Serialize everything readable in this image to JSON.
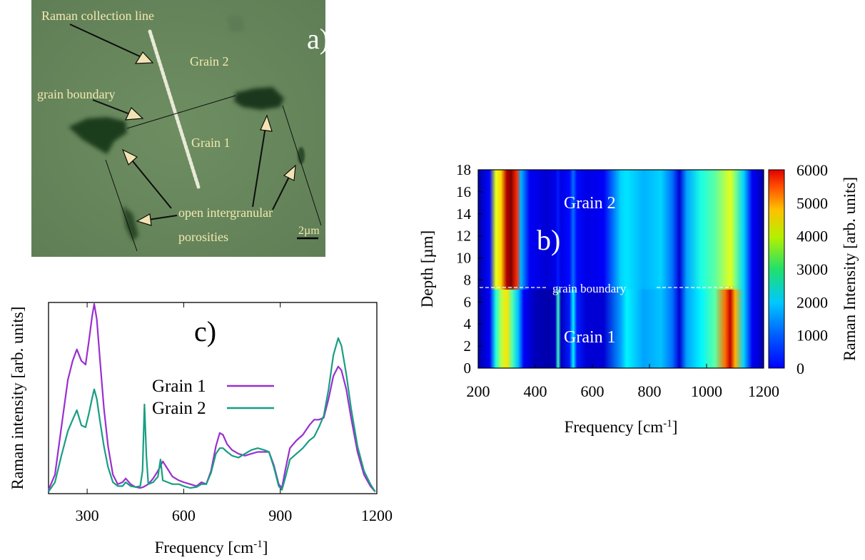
{
  "panel_a": {
    "panel_label": "a)",
    "annotations": {
      "collection_line": "Raman collection line",
      "grain_2": "Grain 2",
      "grain_boundary": "grain boundary",
      "grain_1": "Grain 1",
      "porosities_line1": "open intergranular",
      "porosities_line2": "porosities",
      "scale_bar": "2µm"
    },
    "colors": {
      "background": "#6b8a5f",
      "label_text": "#f3e9b0",
      "arrow_fill": "#f3e3b3",
      "pore": "#1e3a1c"
    }
  },
  "chart_data": [
    {
      "type": "heatmap",
      "panel_label": "b)",
      "xlabel": "Frequency [cm",
      "xlabel_sup": "-1",
      "xlabel_end": "]",
      "ylabel": "Depth [µm]",
      "colorbar_label": "Raman Intensity [arb. units]",
      "xlim": [
        200,
        1200
      ],
      "ylim": [
        0,
        18
      ],
      "xticks": [
        "200",
        "400",
        "600",
        "800",
        "1000",
        "1200"
      ],
      "yticks": [
        "0",
        "2",
        "4",
        "6",
        "8",
        "10",
        "12",
        "14",
        "16",
        "18"
      ],
      "colorbar_range": [
        0,
        6000
      ],
      "colorbar_ticks": [
        "0",
        "1000",
        "2000",
        "3000",
        "4000",
        "5000",
        "6000"
      ],
      "grain_boundary_depth": 7.3,
      "annotations": {
        "grain_2": "Grain 2",
        "grain_1": "Grain 1",
        "boundary": "grain boundary"
      },
      "colormap": "jet",
      "bands_grain1": [
        {
          "f": 205,
          "v": 300
        },
        {
          "f": 240,
          "v": 700
        },
        {
          "f": 262,
          "v": 2400
        },
        {
          "f": 280,
          "v": 3300
        },
        {
          "f": 300,
          "v": 3900
        },
        {
          "f": 320,
          "v": 2700
        },
        {
          "f": 340,
          "v": 1900
        },
        {
          "f": 360,
          "v": 700
        },
        {
          "f": 400,
          "v": 350
        },
        {
          "f": 440,
          "v": 250
        },
        {
          "f": 470,
          "v": 350
        },
        {
          "f": 480,
          "v": 2600
        },
        {
          "f": 490,
          "v": 350
        },
        {
          "f": 520,
          "v": 900
        },
        {
          "f": 533,
          "v": 2200
        },
        {
          "f": 546,
          "v": 900
        },
        {
          "f": 580,
          "v": 500
        },
        {
          "f": 640,
          "v": 500
        },
        {
          "f": 700,
          "v": 1700
        },
        {
          "f": 720,
          "v": 2200
        },
        {
          "f": 780,
          "v": 1700
        },
        {
          "f": 840,
          "v": 1900
        },
        {
          "f": 880,
          "v": 1400
        },
        {
          "f": 905,
          "v": 500
        },
        {
          "f": 930,
          "v": 1700
        },
        {
          "f": 980,
          "v": 2200
        },
        {
          "f": 1030,
          "v": 2800
        },
        {
          "f": 1065,
          "v": 4600
        },
        {
          "f": 1083,
          "v": 5600
        },
        {
          "f": 1100,
          "v": 4200
        },
        {
          "f": 1130,
          "v": 2000
        },
        {
          "f": 1160,
          "v": 700
        },
        {
          "f": 1200,
          "v": 300
        }
      ],
      "bands_grain2": [
        {
          "f": 205,
          "v": 300
        },
        {
          "f": 240,
          "v": 800
        },
        {
          "f": 262,
          "v": 3600
        },
        {
          "f": 280,
          "v": 4000
        },
        {
          "f": 300,
          "v": 5700
        },
        {
          "f": 315,
          "v": 6000
        },
        {
          "f": 335,
          "v": 5000
        },
        {
          "f": 350,
          "v": 1800
        },
        {
          "f": 380,
          "v": 700
        },
        {
          "f": 440,
          "v": 500
        },
        {
          "f": 470,
          "v": 600
        },
        {
          "f": 480,
          "v": 900
        },
        {
          "f": 490,
          "v": 600
        },
        {
          "f": 520,
          "v": 800
        },
        {
          "f": 533,
          "v": 1400
        },
        {
          "f": 546,
          "v": 800
        },
        {
          "f": 580,
          "v": 600
        },
        {
          "f": 640,
          "v": 700
        },
        {
          "f": 700,
          "v": 2000
        },
        {
          "f": 720,
          "v": 2100
        },
        {
          "f": 780,
          "v": 1800
        },
        {
          "f": 840,
          "v": 2000
        },
        {
          "f": 880,
          "v": 1400
        },
        {
          "f": 905,
          "v": 500
        },
        {
          "f": 930,
          "v": 1700
        },
        {
          "f": 980,
          "v": 2400
        },
        {
          "f": 1030,
          "v": 2800
        },
        {
          "f": 1065,
          "v": 3300
        },
        {
          "f": 1083,
          "v": 3600
        },
        {
          "f": 1100,
          "v": 3000
        },
        {
          "f": 1130,
          "v": 2000
        },
        {
          "f": 1160,
          "v": 700
        },
        {
          "f": 1200,
          "v": 300
        }
      ]
    },
    {
      "type": "line",
      "panel_label": "c)",
      "xlabel": "Frequency [cm",
      "xlabel_sup": "-1",
      "xlabel_end": "]",
      "ylabel": "Raman intensity [arb. units]",
      "xlim": [
        180,
        1200
      ],
      "ylim": [
        0,
        1
      ],
      "xticks": [
        "300",
        "600",
        "900",
        "1200"
      ],
      "series": [
        {
          "name": "Grain 1",
          "color": "#9a2fd0",
          "points": [
            [
              180,
              0.02
            ],
            [
              200,
              0.1
            ],
            [
              220,
              0.35
            ],
            [
              240,
              0.6
            ],
            [
              255,
              0.7
            ],
            [
              268,
              0.76
            ],
            [
              282,
              0.7
            ],
            [
              295,
              0.68
            ],
            [
              305,
              0.8
            ],
            [
              315,
              0.93
            ],
            [
              322,
              1.0
            ],
            [
              330,
              0.92
            ],
            [
              340,
              0.7
            ],
            [
              352,
              0.45
            ],
            [
              365,
              0.25
            ],
            [
              380,
              0.1
            ],
            [
              395,
              0.05
            ],
            [
              410,
              0.06
            ],
            [
              420,
              0.08
            ],
            [
              435,
              0.05
            ],
            [
              450,
              0.035
            ],
            [
              465,
              0.03
            ],
            [
              475,
              0.035
            ],
            [
              490,
              0.05
            ],
            [
              505,
              0.08
            ],
            [
              520,
              0.12
            ],
            [
              535,
              0.17
            ],
            [
              550,
              0.13
            ],
            [
              565,
              0.09
            ],
            [
              585,
              0.07
            ],
            [
              600,
              0.06
            ],
            [
              620,
              0.05
            ],
            [
              640,
              0.04
            ],
            [
              655,
              0.06
            ],
            [
              670,
              0.05
            ],
            [
              685,
              0.12
            ],
            [
              700,
              0.25
            ],
            [
              712,
              0.32
            ],
            [
              722,
              0.31
            ],
            [
              735,
              0.26
            ],
            [
              750,
              0.23
            ],
            [
              770,
              0.21
            ],
            [
              790,
              0.2
            ],
            [
              810,
              0.21
            ],
            [
              830,
              0.22
            ],
            [
              850,
              0.22
            ],
            [
              865,
              0.22
            ],
            [
              880,
              0.15
            ],
            [
              895,
              0.05
            ],
            [
              905,
              0.03
            ],
            [
              915,
              0.12
            ],
            [
              930,
              0.24
            ],
            [
              950,
              0.28
            ],
            [
              970,
              0.31
            ],
            [
              990,
              0.36
            ],
            [
              1005,
              0.39
            ],
            [
              1020,
              0.39
            ],
            [
              1035,
              0.4
            ],
            [
              1050,
              0.5
            ],
            [
              1065,
              0.62
            ],
            [
              1080,
              0.67
            ],
            [
              1090,
              0.65
            ],
            [
              1105,
              0.55
            ],
            [
              1120,
              0.4
            ],
            [
              1140,
              0.22
            ],
            [
              1160,
              0.1
            ],
            [
              1180,
              0.04
            ],
            [
              1195,
              0.01
            ]
          ]
        },
        {
          "name": "Grain 2",
          "color": "#189e82",
          "points": [
            [
              180,
              0.01
            ],
            [
              200,
              0.06
            ],
            [
              220,
              0.2
            ],
            [
              240,
              0.33
            ],
            [
              255,
              0.39
            ],
            [
              268,
              0.44
            ],
            [
              282,
              0.36
            ],
            [
              295,
              0.35
            ],
            [
              305,
              0.42
            ],
            [
              315,
              0.5
            ],
            [
              322,
              0.55
            ],
            [
              330,
              0.5
            ],
            [
              340,
              0.38
            ],
            [
              352,
              0.25
            ],
            [
              365,
              0.14
            ],
            [
              380,
              0.06
            ],
            [
              395,
              0.04
            ],
            [
              410,
              0.04
            ],
            [
              420,
              0.06
            ],
            [
              435,
              0.04
            ],
            [
              450,
              0.035
            ],
            [
              465,
              0.04
            ],
            [
              472,
              0.12
            ],
            [
              478,
              0.47
            ],
            [
              484,
              0.2
            ],
            [
              490,
              0.05
            ],
            [
              505,
              0.06
            ],
            [
              520,
              0.09
            ],
            [
              528,
              0.18
            ],
            [
              535,
              0.07
            ],
            [
              550,
              0.06
            ],
            [
              565,
              0.05
            ],
            [
              585,
              0.05
            ],
            [
              600,
              0.04
            ],
            [
              620,
              0.03
            ],
            [
              640,
              0.035
            ],
            [
              655,
              0.05
            ],
            [
              670,
              0.05
            ],
            [
              685,
              0.11
            ],
            [
              700,
              0.21
            ],
            [
              712,
              0.24
            ],
            [
              722,
              0.24
            ],
            [
              735,
              0.22
            ],
            [
              750,
              0.2
            ],
            [
              770,
              0.19
            ],
            [
              790,
              0.21
            ],
            [
              810,
              0.23
            ],
            [
              830,
              0.24
            ],
            [
              850,
              0.23
            ],
            [
              865,
              0.22
            ],
            [
              880,
              0.14
            ],
            [
              895,
              0.04
            ],
            [
              905,
              0.02
            ],
            [
              915,
              0.08
            ],
            [
              930,
              0.18
            ],
            [
              950,
              0.21
            ],
            [
              970,
              0.24
            ],
            [
              990,
              0.28
            ],
            [
              1005,
              0.3
            ],
            [
              1020,
              0.35
            ],
            [
              1035,
              0.41
            ],
            [
              1050,
              0.55
            ],
            [
              1065,
              0.73
            ],
            [
              1080,
              0.82
            ],
            [
              1090,
              0.78
            ],
            [
              1105,
              0.63
            ],
            [
              1120,
              0.45
            ],
            [
              1140,
              0.25
            ],
            [
              1160,
              0.12
            ],
            [
              1180,
              0.05
            ],
            [
              1195,
              0.01
            ]
          ]
        }
      ]
    }
  ]
}
